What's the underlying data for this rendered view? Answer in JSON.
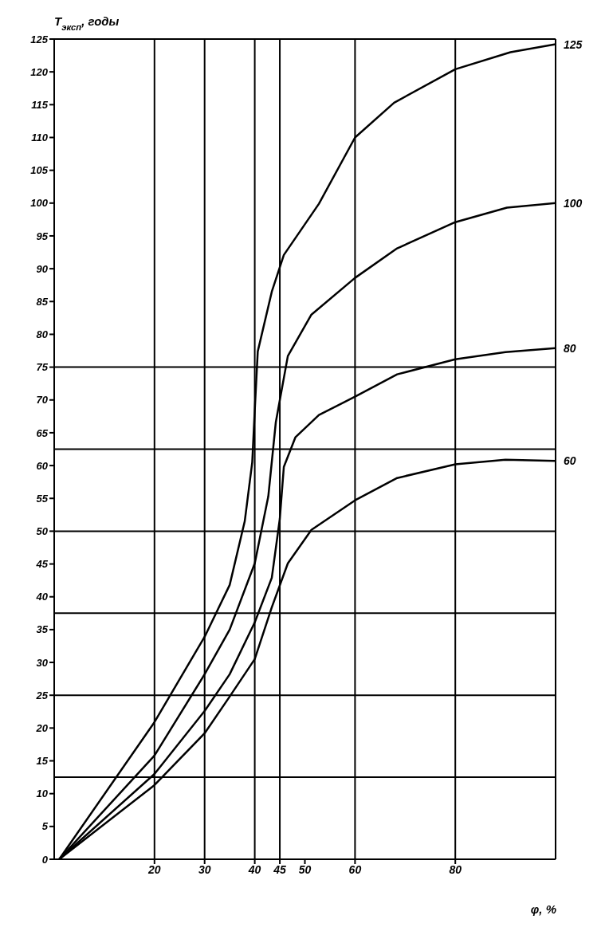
{
  "chart_data": {
    "type": "line",
    "ylabel": "T$_{эксп}$, годы",
    "xlabel": "φ, %",
    "xlim": [
      0,
      100
    ],
    "xticks": [
      20,
      30,
      40,
      45,
      50,
      60,
      80
    ],
    "ylim": [
      0,
      125
    ],
    "yticks": [
      0,
      5,
      10,
      15,
      20,
      25,
      30,
      35,
      40,
      45,
      50,
      55,
      60,
      65,
      70,
      75,
      80,
      85,
      90,
      95,
      100,
      105,
      110,
      115,
      120,
      125
    ],
    "legend": false,
    "marker": "none",
    "line_style": "solid",
    "series": [
      {
        "name": "125",
        "color": "#000000",
        "x": [
          1,
          20,
          30,
          35,
          38,
          39.5,
          40,
          40.6,
          43.4,
          45.8,
          52.8,
          60,
          67.8,
          80,
          91,
          100
        ],
        "values": [
          0,
          20.9,
          33.9,
          41.8,
          51.5,
          60.5,
          68.4,
          77.4,
          86.5,
          92.1,
          99.9,
          110,
          115.3,
          120.4,
          123,
          124.2
        ]
      },
      {
        "name": "100",
        "color": "#000000",
        "x": [
          1,
          20,
          30,
          35,
          40,
          42.7,
          44.2,
          46.6,
          51.3,
          60,
          68.4,
          80,
          90.3,
          100
        ],
        "values": [
          0,
          15.8,
          28.2,
          35,
          45.1,
          55.3,
          66.6,
          76.7,
          83,
          88.6,
          93.1,
          97.1,
          99.3,
          100
        ]
      },
      {
        "name": "80",
        "color": "#000000",
        "x": [
          1,
          20,
          30,
          35,
          40,
          43.4,
          45,
          45.8,
          48.1,
          52.8,
          60,
          68.4,
          80,
          90,
          100
        ],
        "values": [
          0,
          13,
          22.6,
          28.2,
          36.1,
          42.9,
          51.9,
          59.8,
          64.3,
          67.7,
          70.5,
          73.9,
          76.2,
          77.3,
          77.9
        ]
      },
      {
        "name": "60",
        "color": "#000000",
        "x": [
          1,
          20,
          30,
          35,
          40,
          43.4,
          46.6,
          51.3,
          60,
          68.4,
          80,
          90,
          100
        ],
        "values": [
          0,
          11.3,
          19.2,
          24.8,
          30.5,
          38.4,
          45.1,
          50.2,
          54.7,
          58.1,
          60.2,
          60.9,
          60.7
        ]
      }
    ],
    "ref_lines": [
      {
        "axis": "y",
        "value": 12.5,
        "color": "#000000"
      },
      {
        "axis": "y",
        "value": 25,
        "color": "#000000"
      },
      {
        "axis": "y",
        "value": 37.5,
        "color": "#000000"
      },
      {
        "axis": "y",
        "value": 50,
        "color": "#000000"
      },
      {
        "axis": "y",
        "value": 62.5,
        "color": "#000000"
      },
      {
        "axis": "y",
        "value": 75,
        "color": "#000000"
      },
      {
        "axis": "x",
        "value": 20,
        "color": "#000000"
      },
      {
        "axis": "x",
        "value": 30,
        "color": "#000000"
      },
      {
        "axis": "x",
        "value": 40,
        "color": "#000000"
      },
      {
        "axis": "x",
        "value": 45,
        "color": "#000000"
      },
      {
        "axis": "x",
        "value": 60,
        "color": "#000000"
      },
      {
        "axis": "x",
        "value": 80,
        "color": "#000000"
      }
    ]
  }
}
